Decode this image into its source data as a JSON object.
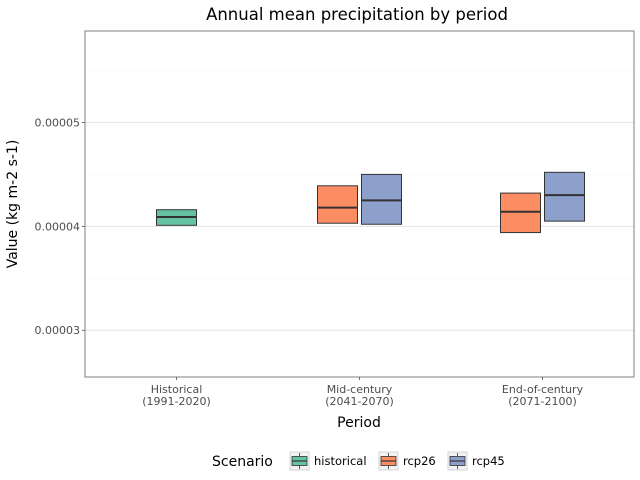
{
  "chart_data": {
    "type": "boxplot",
    "title": "Annual mean precipitation by period",
    "xlabel": "Period",
    "ylabel": "Value (kg m-2 s-1)",
    "ylim": [
      2.55e-05,
      5.88e-05
    ],
    "yticks": [
      3e-05,
      4e-05,
      5e-05
    ],
    "ytick_labels": [
      "0.00003",
      "0.00004",
      "0.00005"
    ],
    "grid": true,
    "categories": [
      [
        "Historical",
        "(1991-2020)"
      ],
      [
        "Mid-century",
        "(2041-2070)"
      ],
      [
        "End-of-century",
        "(2071-2100)"
      ]
    ],
    "legend": {
      "title": "Scenario",
      "position": "bottom",
      "entries": [
        "historical",
        "rcp26",
        "rcp45"
      ]
    },
    "series": [
      {
        "name": "historical",
        "color": "#66c2a5",
        "boxes": [
          {
            "category": 0,
            "q1": 4.01e-05,
            "median": 4.09e-05,
            "q3": 4.16e-05
          }
        ]
      },
      {
        "name": "rcp26",
        "color": "#fc8d62",
        "boxes": [
          {
            "category": 1,
            "q1": 4.03e-05,
            "median": 4.18e-05,
            "q3": 4.39e-05
          },
          {
            "category": 2,
            "q1": 3.94e-05,
            "median": 4.14e-05,
            "q3": 4.32e-05
          }
        ]
      },
      {
        "name": "rcp45",
        "color": "#8da0cb",
        "boxes": [
          {
            "category": 1,
            "q1": 4.02e-05,
            "median": 4.25e-05,
            "q3": 4.5e-05
          },
          {
            "category": 2,
            "q1": 4.05e-05,
            "median": 4.3e-05,
            "q3": 4.52e-05
          }
        ]
      }
    ]
  }
}
